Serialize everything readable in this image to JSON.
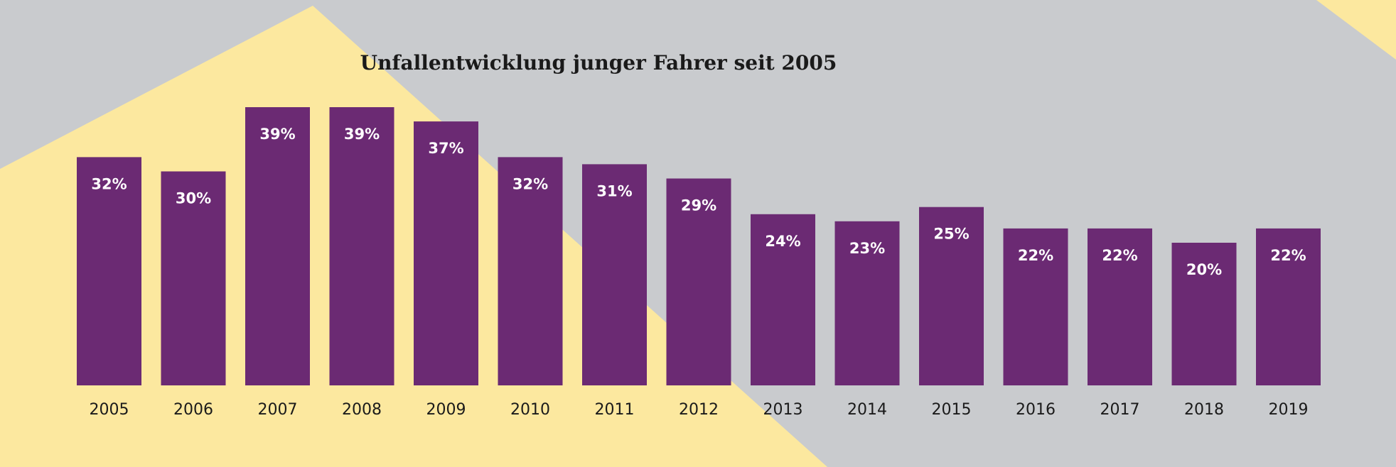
{
  "colors": {
    "background": "#c9cbce",
    "accent_shape": "#fce89f",
    "bar": "#6b2a73",
    "data_label": "#ffffff",
    "text": "#1a1a1a"
  },
  "chart_data": {
    "type": "bar",
    "title": "Unfallentwicklung junger Fahrer seit 2005",
    "xlabel": "",
    "ylabel": "",
    "unit": "%",
    "ylim": [
      0,
      39
    ],
    "grid": false,
    "legend": "none",
    "categories": [
      "2005",
      "2006",
      "2007",
      "2008",
      "2009",
      "2010",
      "2011",
      "2012",
      "2013",
      "2014",
      "2015",
      "2016",
      "2017",
      "2018",
      "2019"
    ],
    "values": [
      32,
      30,
      39,
      39,
      37,
      32,
      31,
      29,
      24,
      23,
      25,
      22,
      22,
      20,
      22
    ],
    "data_labels": [
      "32%",
      "30%",
      "39%",
      "39%",
      "37%",
      "32%",
      "31%",
      "29%",
      "24%",
      "23%",
      "25%",
      "22%",
      "22%",
      "20%",
      "22%"
    ]
  }
}
